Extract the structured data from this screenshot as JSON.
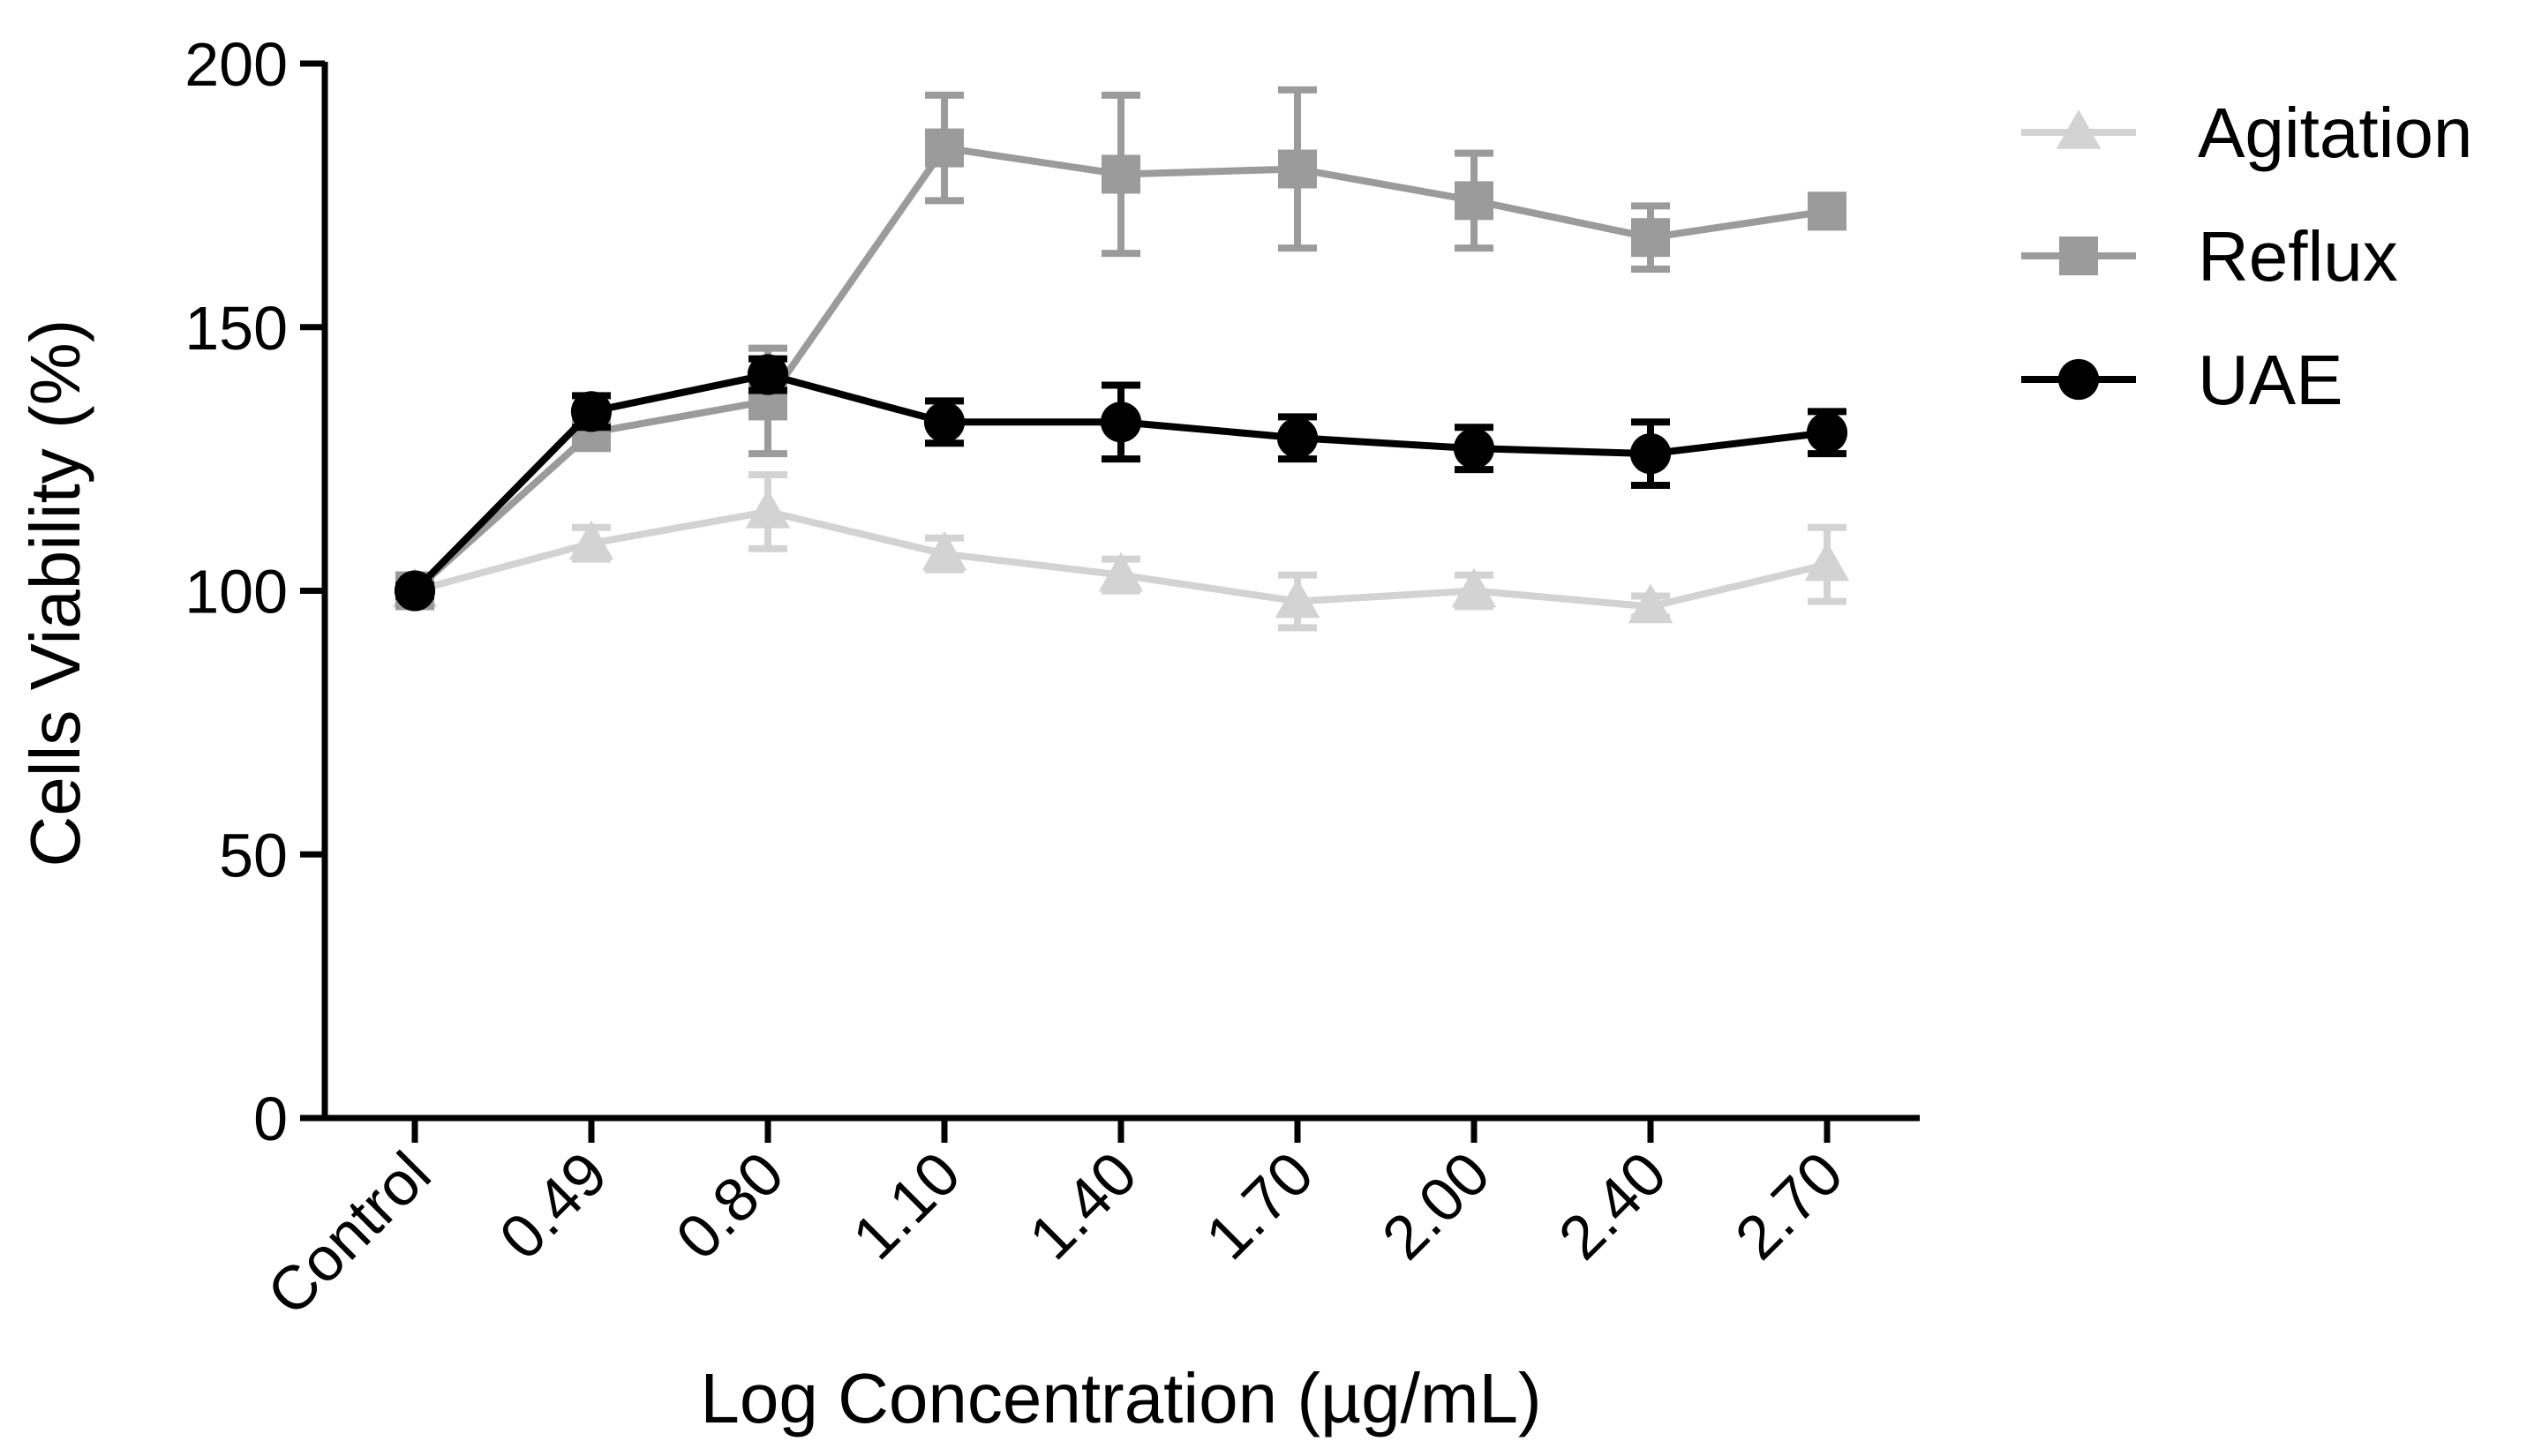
{
  "chart_data": {
    "type": "line",
    "title": "",
    "xlabel": "Log Concentration (µg/mL)",
    "ylabel": "Cells Viability (%)",
    "categories": [
      "Control",
      "0.49",
      "0.80",
      "1.10",
      "1.40",
      "1.70",
      "2.00",
      "2.40",
      "2.70"
    ],
    "ylim": [
      0,
      200
    ],
    "yticks": [
      0,
      50,
      100,
      150,
      200
    ],
    "grid": false,
    "legend_position": "top-right",
    "series": [
      {
        "name": "Agitation",
        "marker": "triangle",
        "color": "#d3d3d3",
        "values": [
          100,
          109,
          115,
          107,
          103,
          98,
          100,
          97,
          105
        ],
        "errors": [
          1,
          3,
          7,
          3,
          3,
          5,
          3,
          2,
          7
        ]
      },
      {
        "name": "Reflux",
        "marker": "square",
        "color": "#9b9b9b",
        "values": [
          100,
          130,
          136,
          184,
          179,
          180,
          174,
          167,
          172
        ],
        "errors": [
          1,
          3,
          10,
          10,
          15,
          15,
          9,
          6,
          3
        ]
      },
      {
        "name": "UAE",
        "marker": "circle",
        "color": "#000000",
        "values": [
          100,
          134,
          141,
          132,
          132,
          129,
          127,
          126,
          130
        ],
        "errors": [
          1,
          3,
          3,
          4,
          7,
          4,
          4,
          6,
          4
        ]
      }
    ]
  }
}
